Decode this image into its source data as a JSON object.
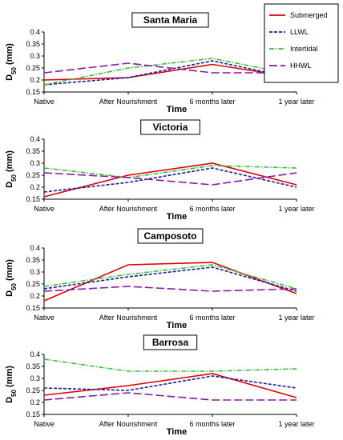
{
  "chart_data": {
    "type": "line",
    "legend": {
      "placement": "top-right",
      "entries": [
        {
          "name": "Submerged",
          "color": "#e00000",
          "dash": "solid"
        },
        {
          "name": "LLWL",
          "color": "#1a1aa8",
          "dash": "dashed"
        },
        {
          "name": "Intertidal",
          "color": "#38c038",
          "dash": "dashdot"
        },
        {
          "name": "HHWL",
          "color": "#8a1aa8",
          "dash": "longdash"
        }
      ]
    },
    "categories": [
      "Native",
      "After Nourishment",
      "6 months later",
      "1 year later"
    ],
    "xlabel": "Time",
    "ylabel": {
      "base": "D",
      "sub": "50",
      "rest": " (mm)"
    },
    "grid": false,
    "panels": [
      {
        "title": "Santa Maria",
        "ylim": [
          0.15,
          0.4
        ],
        "yticks": [
          "0.15",
          "0.2",
          "0.25",
          "0.3",
          "0.35",
          "0.4"
        ],
        "series": [
          {
            "name": "Submerged",
            "values": [
              0.2,
              0.21,
              0.265,
              0.21
            ]
          },
          {
            "name": "LLWL",
            "values": [
              0.18,
              0.21,
              0.28,
              0.205
            ]
          },
          {
            "name": "Intertidal",
            "values": [
              0.18,
              0.25,
              0.29,
              0.22
            ]
          },
          {
            "name": "HHWL",
            "values": [
              0.23,
              0.27,
              0.23,
              0.23
            ]
          }
        ]
      },
      {
        "title": "Victoria",
        "ylim": [
          0.15,
          0.4
        ],
        "yticks": [
          "0.15",
          "0.2",
          "0.25",
          "0.3",
          "0.35",
          "0.4"
        ],
        "series": [
          {
            "name": "Submerged",
            "values": [
              0.16,
              0.25,
              0.3,
              0.21
            ]
          },
          {
            "name": "LLWL",
            "values": [
              0.18,
              0.22,
              0.28,
              0.2
            ]
          },
          {
            "name": "Intertidal",
            "values": [
              0.28,
              0.24,
              0.29,
              0.28
            ]
          },
          {
            "name": "HHWL",
            "values": [
              0.26,
              0.24,
              0.21,
              0.26
            ]
          }
        ]
      },
      {
        "title": "Camposoto",
        "ylim": [
          0.15,
          0.4
        ],
        "yticks": [
          "0.15",
          "0.2",
          "0.25",
          "0.3",
          "0.35",
          "0.4"
        ],
        "series": [
          {
            "name": "Submerged",
            "values": [
              0.18,
              0.33,
              0.34,
              0.21
            ]
          },
          {
            "name": "LLWL",
            "values": [
              0.23,
              0.28,
              0.32,
              0.22
            ]
          },
          {
            "name": "Intertidal",
            "values": [
              0.24,
              0.29,
              0.33,
              0.23
            ]
          },
          {
            "name": "HHWL",
            "values": [
              0.22,
              0.24,
              0.22,
              0.23
            ]
          }
        ]
      },
      {
        "title": "Barrosa",
        "ylim": [
          0.15,
          0.4
        ],
        "yticks": [
          "0.15",
          "0.2",
          "0.25",
          "0.3",
          "0.35",
          "0.4"
        ],
        "series": [
          {
            "name": "Submerged",
            "values": [
              0.23,
              0.27,
              0.32,
              0.22
            ]
          },
          {
            "name": "LLWL",
            "values": [
              0.26,
              0.25,
              0.31,
              0.26
            ]
          },
          {
            "name": "Intertidal",
            "values": [
              0.38,
              0.33,
              0.33,
              0.34
            ]
          },
          {
            "name": "HHWL",
            "values": [
              0.21,
              0.24,
              0.21,
              0.21
            ]
          }
        ]
      }
    ]
  }
}
